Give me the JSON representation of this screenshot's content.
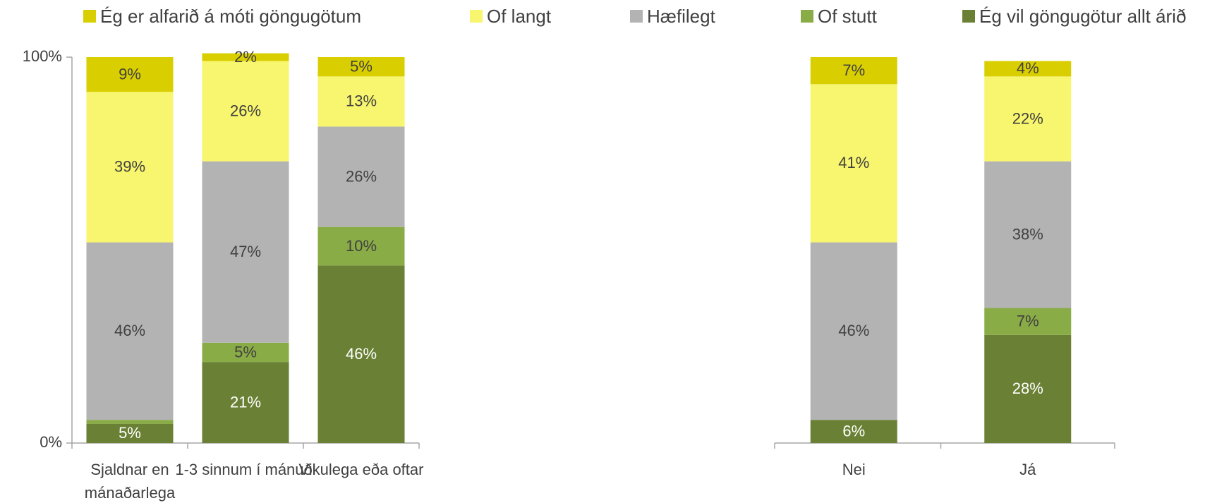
{
  "chart_data": [
    {
      "type": "stacked_bar",
      "categories": [
        "Sjaldnar en mánaðarlega",
        "1-3 sinnum í mánuði",
        "Vikulega eða oftar"
      ],
      "series": [
        {
          "name": "Ég vil göngugötur allt árið",
          "color": "#6a8034",
          "values": [
            5,
            21,
            46
          ],
          "value_labels": [
            "5%",
            "21%",
            "46%"
          ]
        },
        {
          "name": "Of stutt",
          "color": "#8aac46",
          "values": [
            1,
            5,
            10
          ],
          "value_labels": [
            null,
            "5%",
            "10%"
          ]
        },
        {
          "name": "Hæfilegt",
          "color": "#b3b3b3",
          "values": [
            46,
            47,
            26
          ],
          "value_labels": [
            "46%",
            "47%",
            "26%"
          ]
        },
        {
          "name": "Of langt",
          "color": "#f8f56e",
          "values": [
            39,
            26,
            13
          ],
          "value_labels": [
            "39%",
            "26%",
            "13%"
          ]
        },
        {
          "name": "Ég er alfarið á móti göngugötum",
          "color": "#d9cf00",
          "values": [
            9,
            2,
            5
          ],
          "value_labels": [
            "9%",
            "2%",
            "5%"
          ]
        }
      ],
      "ylim": [
        0,
        100
      ],
      "yticks": [
        {
          "value": 0,
          "label": "0%"
        },
        {
          "value": 100,
          "label": "100%"
        }
      ],
      "legend": "top"
    },
    {
      "type": "stacked_bar",
      "categories": [
        "Nei",
        "Já"
      ],
      "series": [
        {
          "name": "Ég vil göngugötur allt árið",
          "color": "#6a8034",
          "values": [
            6,
            28
          ],
          "value_labels": [
            "6%",
            "28%"
          ]
        },
        {
          "name": "Of stutt",
          "color": "#8aac46",
          "values": [
            0,
            7
          ],
          "value_labels": [
            null,
            "7%"
          ]
        },
        {
          "name": "Hæfilegt",
          "color": "#b3b3b3",
          "values": [
            46,
            38
          ],
          "value_labels": [
            "46%",
            "38%"
          ]
        },
        {
          "name": "Of langt",
          "color": "#f8f56e",
          "values": [
            41,
            22
          ],
          "value_labels": [
            "41%",
            "22%"
          ]
        },
        {
          "name": "Ég er alfarið á móti göngugötum",
          "color": "#d9cf00",
          "values": [
            7,
            4
          ],
          "value_labels": [
            "7%",
            "4%"
          ]
        }
      ],
      "ylim": [
        0,
        100
      ]
    }
  ]
}
